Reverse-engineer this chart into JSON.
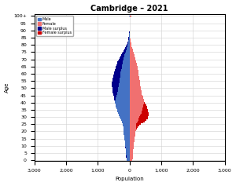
{
  "title": "Cambridge – 2021",
  "xlabel": "Population",
  "ylabel": "Age",
  "xlim": [
    -3000,
    3000
  ],
  "ylim": [
    -0.5,
    101.5
  ],
  "xticks": [
    -3000,
    -2000,
    -1000,
    0,
    1000,
    2000,
    3000
  ],
  "xticklabels": [
    "3,000",
    "2,000",
    "1,000",
    "0",
    "1,000",
    "2,000",
    "3,000"
  ],
  "ytick_positions": [
    0,
    5,
    10,
    15,
    20,
    25,
    30,
    35,
    40,
    45,
    50,
    55,
    60,
    65,
    70,
    75,
    80,
    85,
    90,
    95,
    100
  ],
  "ytick_labels": [
    "0",
    "5",
    "10",
    "15",
    "20",
    "25",
    "30",
    "35",
    "40",
    "45",
    "50",
    "55",
    "60",
    "65",
    "70",
    "75",
    "80",
    "85",
    "90",
    "95",
    "100+"
  ],
  "color_male": "#4472c4",
  "color_female": "#f07070",
  "color_male_surplus": "#00008b",
  "color_female_surplus": "#cc0000",
  "bar_height": 1.0,
  "background_color": "#ffffff",
  "grid_color": "#d0d0d0",
  "male_by_age": [
    95,
    100,
    105,
    108,
    112,
    115,
    118,
    120,
    125,
    130,
    135,
    140,
    145,
    150,
    160,
    160,
    170,
    175,
    180,
    185,
    190,
    195,
    195,
    200,
    205,
    215,
    230,
    250,
    270,
    290,
    310,
    330,
    350,
    370,
    390,
    400,
    410,
    430,
    440,
    450,
    460,
    470,
    480,
    490,
    500,
    510,
    520,
    530,
    535,
    540,
    545,
    550,
    555,
    555,
    550,
    545,
    540,
    530,
    520,
    510,
    500,
    490,
    475,
    460,
    450,
    435,
    420,
    400,
    380,
    360,
    340,
    310,
    280,
    260,
    240,
    210,
    185,
    160,
    140,
    115,
    90,
    75,
    60,
    50,
    40,
    30,
    22,
    16,
    10,
    6,
    3,
    2,
    1,
    0,
    0,
    0,
    0,
    0,
    0,
    0,
    15
  ],
  "female_by_age": [
    90,
    95,
    100,
    103,
    108,
    112,
    115,
    118,
    122,
    128,
    132,
    138,
    142,
    148,
    155,
    158,
    168,
    172,
    178,
    182,
    188,
    195,
    220,
    260,
    310,
    360,
    420,
    480,
    530,
    570,
    590,
    600,
    600,
    600,
    590,
    580,
    565,
    545,
    525,
    505,
    485,
    465,
    448,
    432,
    418,
    405,
    392,
    380,
    370,
    360,
    352,
    345,
    338,
    332,
    326,
    320,
    314,
    308,
    300,
    292,
    285,
    278,
    270,
    260,
    252,
    244,
    235,
    225,
    215,
    204,
    193,
    180,
    168,
    155,
    143,
    128,
    113,
    98,
    84,
    70,
    58,
    48,
    38,
    30,
    24,
    18,
    14,
    10,
    7,
    4,
    2,
    1,
    1,
    0,
    0,
    0,
    0,
    0,
    0,
    0,
    60
  ]
}
